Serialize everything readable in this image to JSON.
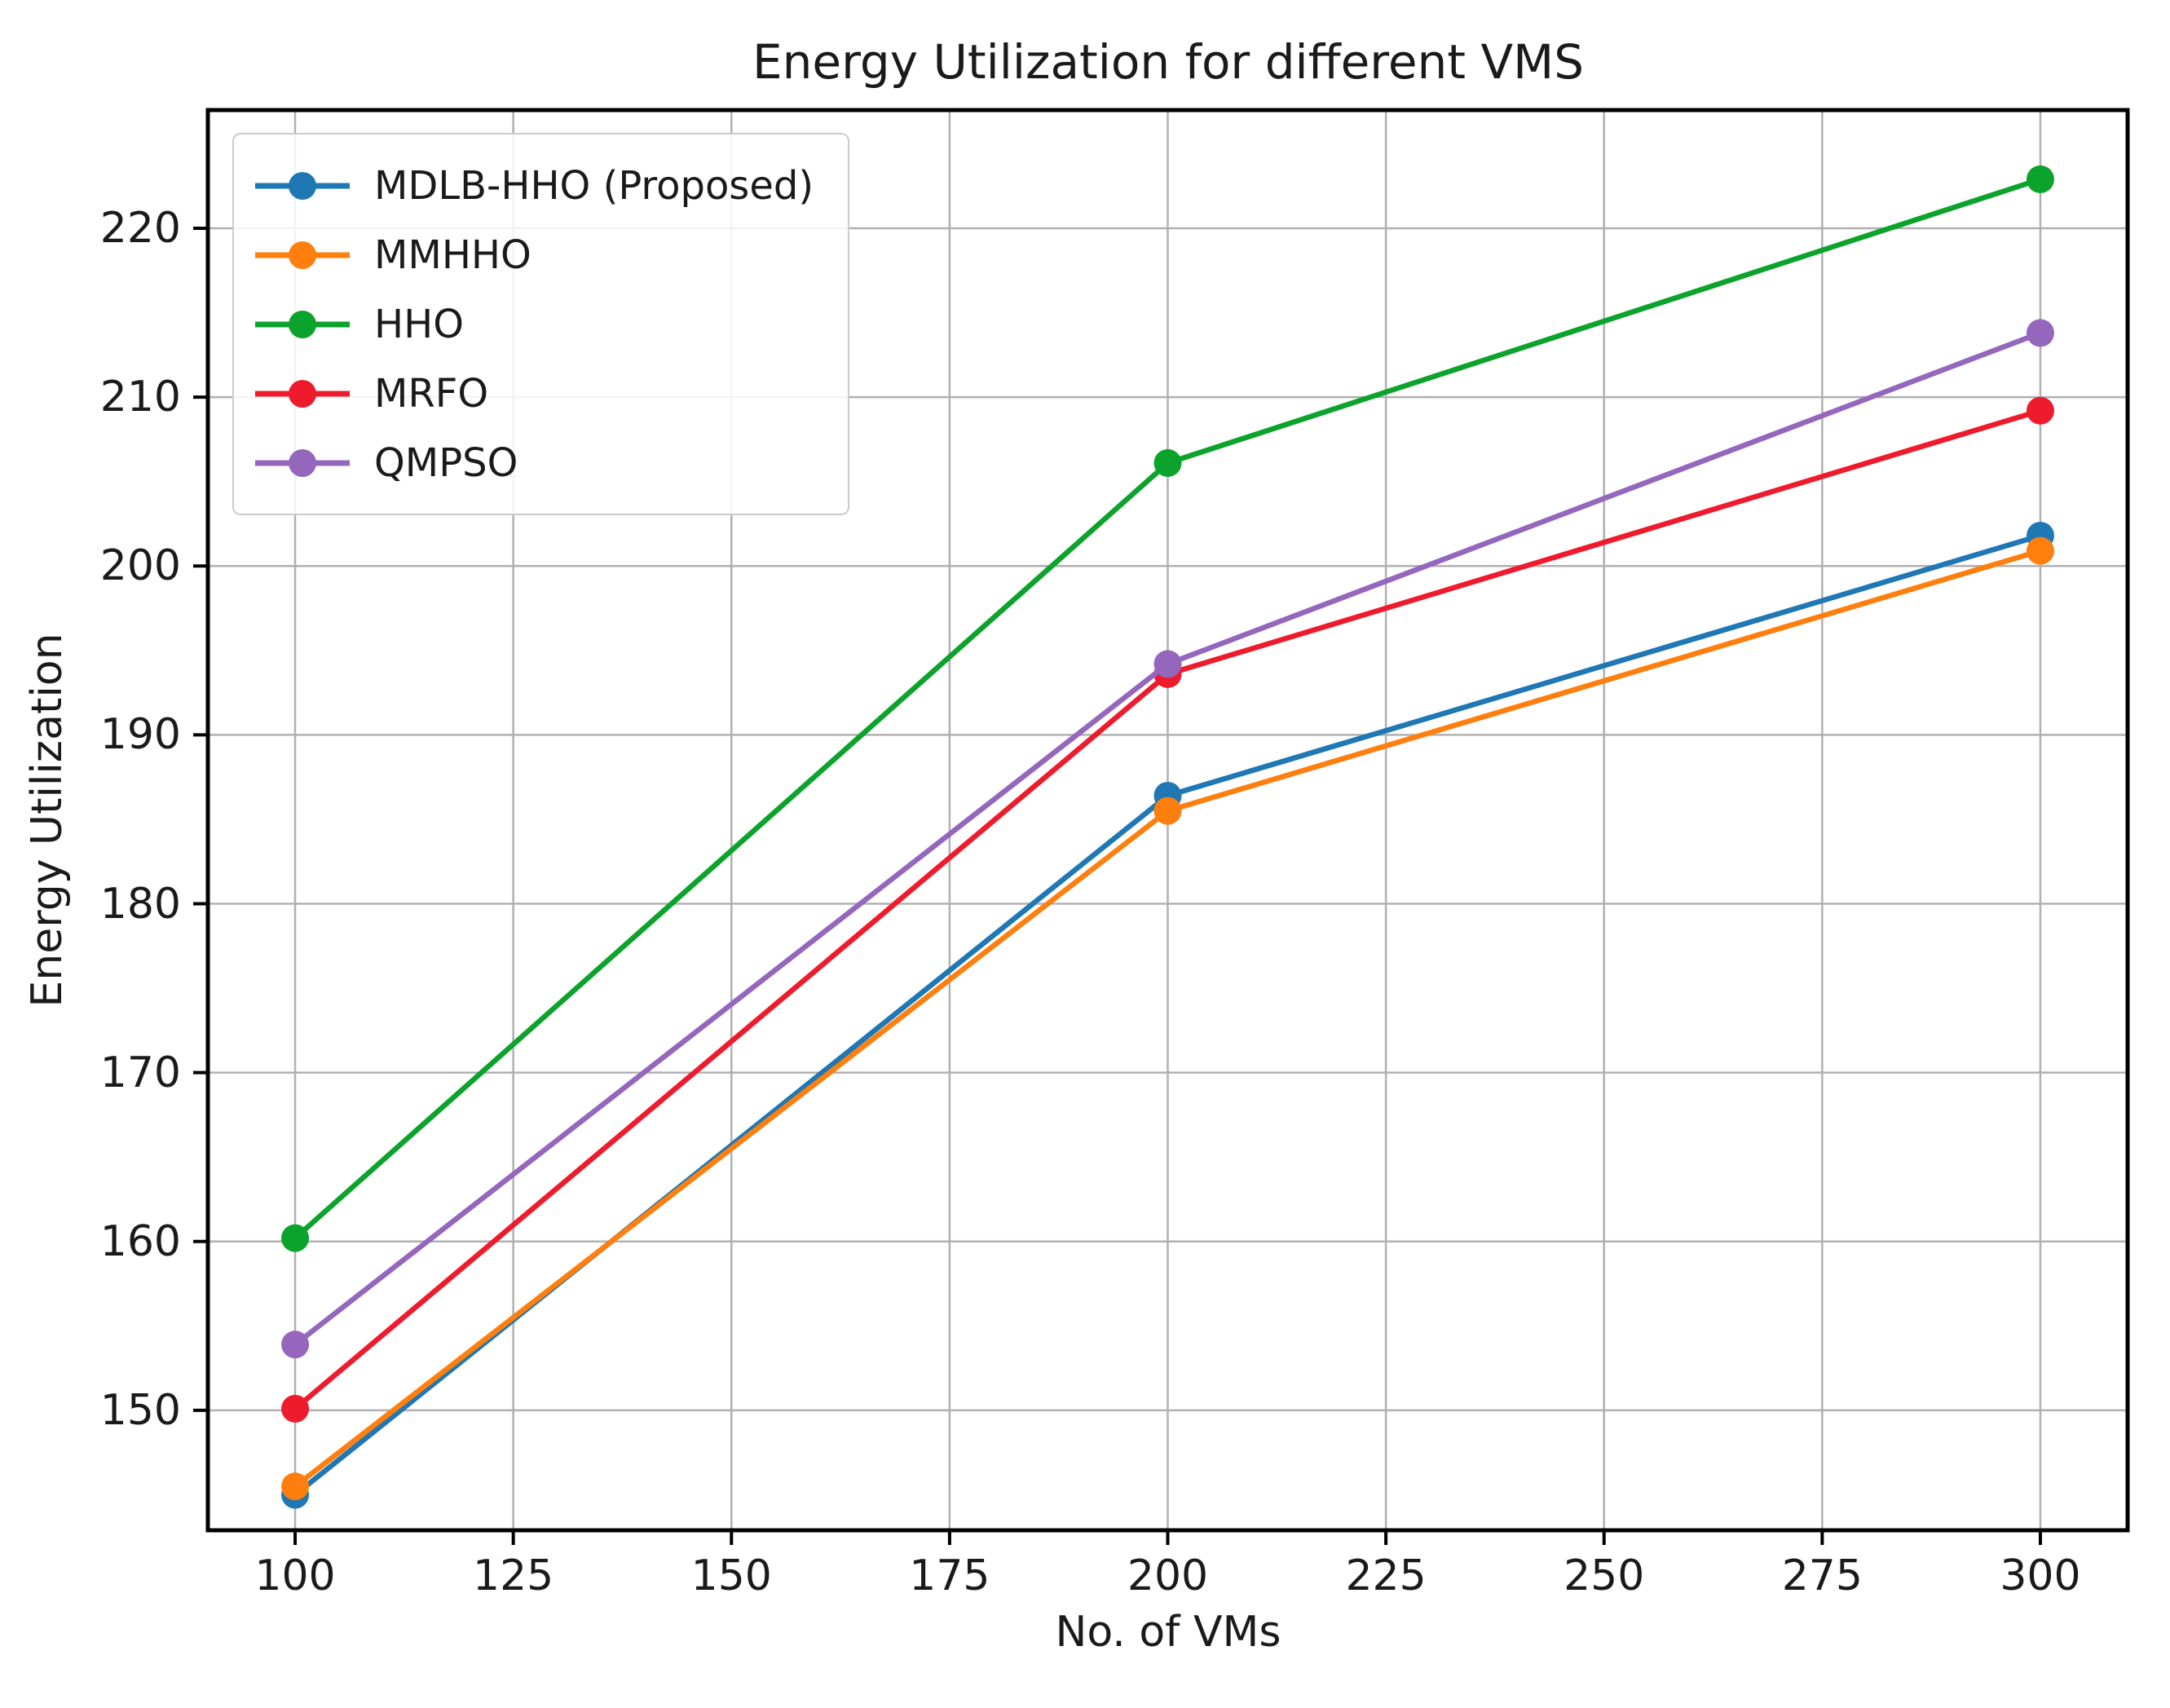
{
  "figure": {
    "background": "#ffffff",
    "spine_color": "#000000",
    "grid_color": "#b0b0b0",
    "tick_color": "#000000",
    "text_color": "#1a1a1a"
  },
  "chart_data": {
    "type": "line",
    "title": "Energy Utilization for different VMS",
    "xlabel": "No. of VMs",
    "ylabel": "Energy Utilization",
    "x": [
      100,
      200,
      300
    ],
    "series": [
      {
        "name": "MDLB-HHO (Proposed)",
        "color": "#1f77b4",
        "values": [
          145.0,
          186.4,
          201.8
        ]
      },
      {
        "name": "MMHHO",
        "color": "#ff7f0e",
        "values": [
          145.5,
          185.5,
          200.9
        ]
      },
      {
        "name": "HHO",
        "color": "#0ca32c",
        "values": [
          160.2,
          206.1,
          222.9
        ]
      },
      {
        "name": "MRFO",
        "color": "#ee1b2d",
        "values": [
          150.1,
          193.6,
          209.2
        ]
      },
      {
        "name": "QMPSO",
        "color": "#9467bd",
        "values": [
          153.9,
          194.2,
          213.8
        ]
      }
    ],
    "x_ticks": [
      100,
      125,
      150,
      175,
      200,
      225,
      250,
      275,
      300
    ],
    "y_ticks": [
      150,
      160,
      170,
      180,
      190,
      200,
      210,
      220
    ],
    "xlim": [
      90,
      310
    ],
    "ylim": [
      142.9,
      227.0
    ],
    "grid": true,
    "legend_position": "upper left",
    "marker": "circle"
  }
}
